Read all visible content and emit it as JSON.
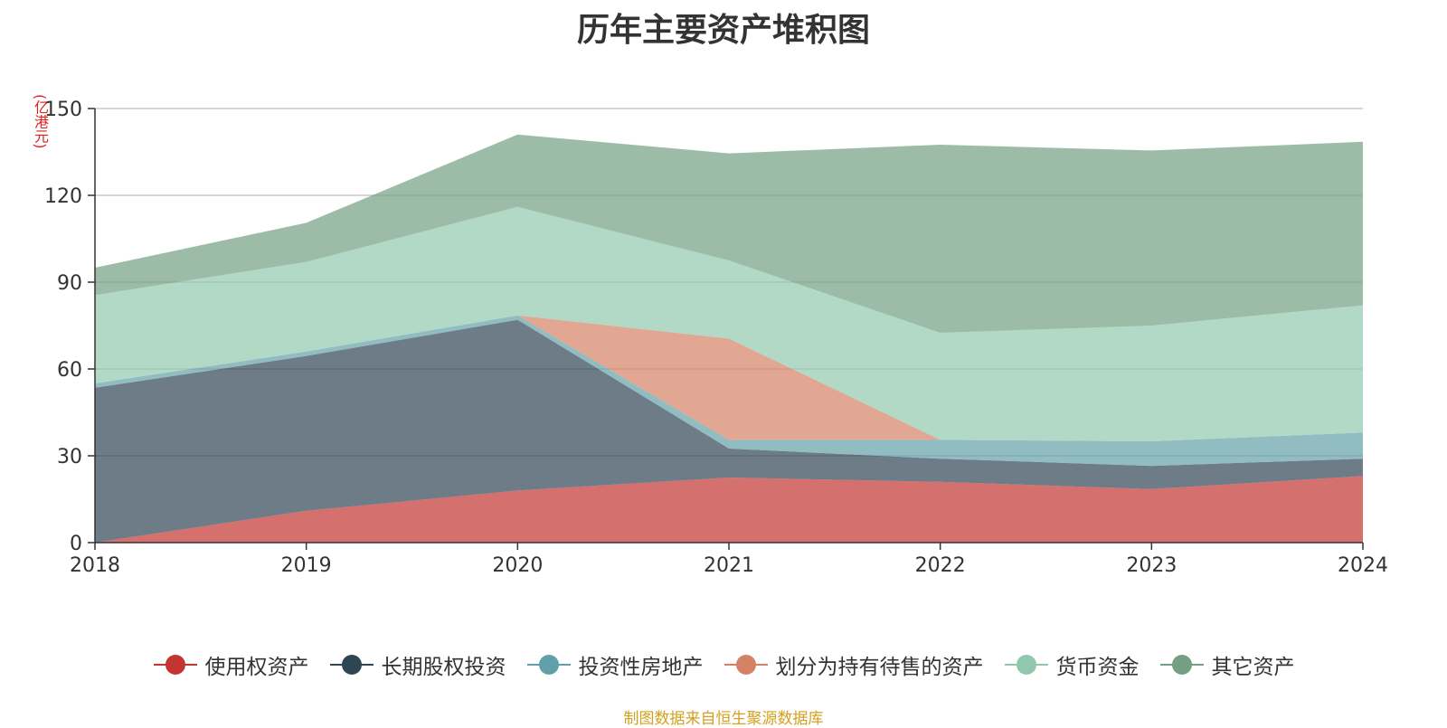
{
  "chart_data": {
    "type": "area",
    "stacked": true,
    "title": "历年主要资产堆积图",
    "ylabel": "(亿港元)",
    "x": [
      "2018",
      "2019",
      "2020",
      "2021",
      "2022",
      "2023",
      "2024"
    ],
    "ylim": [
      0,
      150
    ],
    "yticks": [
      0,
      30,
      60,
      90,
      120,
      150
    ],
    "grid": true,
    "legend_position": "bottom",
    "series": [
      {
        "name": "使用权资产",
        "color": "#c23531",
        "values": [
          0,
          11,
          18,
          22.5,
          21,
          18.5,
          23
        ]
      },
      {
        "name": "长期股权投资",
        "color": "#2f4554",
        "values": [
          53.5,
          53.5,
          59,
          10,
          8,
          8,
          6
        ]
      },
      {
        "name": "投资性房地产",
        "color": "#61a0a8",
        "values": [
          1.5,
          1.5,
          1.5,
          3,
          6.5,
          8.5,
          9
        ]
      },
      {
        "name": "划分为持有待售的资产",
        "color": "#d48265",
        "values": [
          0,
          0,
          0,
          35,
          0,
          0,
          0
        ]
      },
      {
        "name": "货币资金",
        "color": "#91c7ae",
        "values": [
          30.5,
          31,
          37.5,
          27,
          37,
          40,
          44
        ]
      },
      {
        "name": "其它资产",
        "color": "#749f83",
        "values": [
          9.5,
          13.5,
          25,
          37,
          65,
          60.5,
          56.5
        ]
      }
    ]
  },
  "footer": {
    "source": "制图数据来自恒生聚源数据库"
  }
}
